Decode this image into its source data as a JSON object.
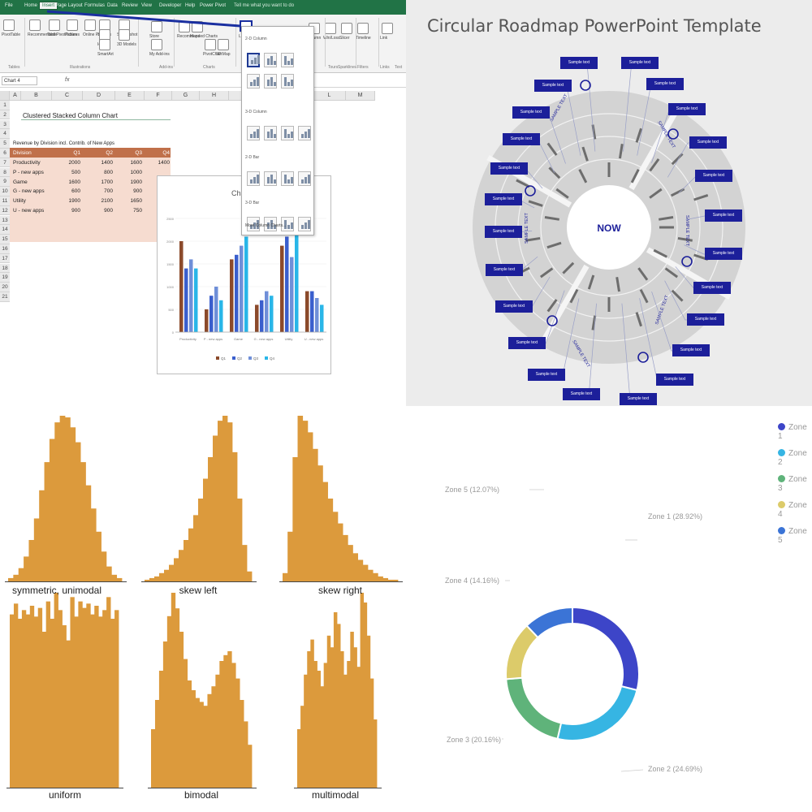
{
  "excel": {
    "tabs": [
      "File",
      "Home",
      "Insert",
      "Page Layout",
      "Formulas",
      "Data",
      "Review",
      "View",
      "Developer",
      "Help",
      "Power Pivot"
    ],
    "active_tab": "Insert",
    "tell_me": "Tell me what you want to do",
    "ribbon_groups": [
      "Tables",
      "Illustrations",
      "Add-ins",
      "Charts",
      "Tours",
      "Sparklines",
      "Filters",
      "Links",
      "Text"
    ],
    "ribbon_buttons": [
      "PivotTable",
      "Recommended PivotTables",
      "Table",
      "Pictures",
      "Online Pictures",
      "Shapes",
      "Icons",
      "SmartArt",
      "Screenshot",
      "3D Models",
      "Store",
      "My Add-ins",
      "Recommended Charts",
      "Maps",
      "PivotChart",
      "3D Map",
      "Line",
      "Column",
      "Win/Loss",
      "Slicer",
      "Timeline",
      "Link"
    ],
    "namebox": "Chart 4",
    "fx": "fx",
    "columns": [
      "A",
      "B",
      "C",
      "D",
      "E",
      "F",
      "G",
      "H",
      "I",
      "J",
      "K",
      "L",
      "M"
    ],
    "rows": [
      "1",
      "2",
      "3",
      "4",
      "5",
      "6",
      "7",
      "8",
      "9",
      "10",
      "11",
      "12",
      "13",
      "14",
      "15",
      "16",
      "17",
      "18",
      "19",
      "20",
      "21"
    ],
    "sheet_title": "Clustered Stacked Column Chart",
    "subtitle": "Revenue by Division incl. Contrib. of New Apps",
    "table_header": [
      "Division",
      "Q1",
      "Q2",
      "Q3",
      "Q4"
    ],
    "table_rows": [
      [
        "Productivity",
        "2000",
        "1400",
        "1600",
        "1400"
      ],
      [
        "P - new apps",
        "500",
        "800",
        "1000",
        ""
      ],
      [
        "Game",
        "1600",
        "1700",
        "1900",
        ""
      ],
      [
        "G - new apps",
        "600",
        "700",
        "900",
        ""
      ],
      [
        "Utility",
        "1900",
        "2100",
        "1650",
        ""
      ],
      [
        "U - new apps",
        "900",
        "900",
        "750",
        ""
      ]
    ],
    "dropdown_sections": [
      "2-D Column",
      "3-D Column",
      "2-D Bar",
      "3-D Bar"
    ],
    "dropdown_more": "More Column Charts...",
    "chart_title": "Cha",
    "chart_legend": [
      "Q1",
      "Q2",
      "Q3",
      "Q4"
    ],
    "chart_colors": [
      "#8b4a2b",
      "#3a5fcd",
      "#6f8fd8",
      "#29b6e8"
    ],
    "chart_categories": [
      "Productivity",
      "P - new apps",
      "Game",
      "G - new apps",
      "Utility",
      "U - new apps"
    ],
    "chart_yticks": [
      "2500",
      "2000",
      "1500",
      "1000",
      "500",
      "0"
    ]
  },
  "roadmap": {
    "title": "Circular Roadmap PowerPoint Template",
    "center": "NOW",
    "box_label": "Sample text",
    "segment_label": "SAMPLE TEXT",
    "box_color": "#1c1f9a"
  },
  "histograms": {
    "fill": "#dc9a3c",
    "labels": [
      "symmetric, unimodal",
      "skew left",
      "skew right",
      "uniform",
      "bimodal",
      "multimodal"
    ]
  },
  "donut": {
    "legend": [
      "Zone 1",
      "Zone 2",
      "Zone 3",
      "Zone 4",
      "Zone 5"
    ],
    "slice_labels": [
      "Zone 1 (28.92%)",
      "Zone 2 (24.69%)",
      "Zone 3 (20.16%)",
      "Zone 4 (14.16%)",
      "Zone 5 (12.07%)"
    ],
    "colors": [
      "#3d45c8",
      "#36b5e3",
      "#5fb37a",
      "#dccb6a",
      "#3b74d6"
    ]
  },
  "chart_data": [
    {
      "type": "bar",
      "title": "Cha",
      "categories": [
        "Productivity",
        "P - new apps",
        "Game",
        "G - new apps",
        "Utility",
        "U - new apps"
      ],
      "series": [
        {
          "name": "Q1",
          "values": [
            2000,
            500,
            1600,
            600,
            1900,
            900
          ]
        },
        {
          "name": "Q2",
          "values": [
            1400,
            800,
            1700,
            700,
            2100,
            900
          ]
        },
        {
          "name": "Q3",
          "values": [
            1600,
            1000,
            1900,
            900,
            1650,
            750
          ]
        },
        {
          "name": "Q4",
          "values": [
            1400,
            700,
            2100,
            800,
            2400,
            600
          ]
        }
      ],
      "ylim": [
        0,
        2500
      ]
    },
    {
      "type": "bar",
      "title": "symmetric, unimodal",
      "values": [
        2,
        4,
        8,
        15,
        25,
        38,
        55,
        72,
        86,
        96,
        100,
        99,
        93,
        84,
        72,
        58,
        44,
        30,
        18,
        9,
        4,
        2
      ]
    },
    {
      "type": "bar",
      "title": "skew left",
      "values": [
        1,
        2,
        3,
        5,
        7,
        10,
        14,
        19,
        25,
        32,
        40,
        50,
        62,
        75,
        88,
        97,
        100,
        96,
        78,
        50,
        22,
        6
      ]
    },
    {
      "type": "bar",
      "title": "skew right",
      "values": [
        5,
        30,
        75,
        100,
        97,
        90,
        80,
        70,
        60,
        50,
        42,
        35,
        28,
        22,
        17,
        13,
        10,
        7,
        5,
        3,
        2,
        1,
        1
      ]
    },
    {
      "type": "bar",
      "title": "uniform",
      "values": [
        80,
        85,
        78,
        82,
        80,
        84,
        79,
        83,
        72,
        86,
        78,
        90,
        82,
        75,
        68,
        88,
        79,
        86,
        83,
        85,
        80,
        84,
        79,
        82,
        88,
        78,
        82
      ]
    },
    {
      "type": "bar",
      "title": "bimodal",
      "values": [
        30,
        45,
        60,
        75,
        88,
        100,
        92,
        80,
        66,
        55,
        50,
        46,
        44,
        42,
        48,
        52,
        58,
        65,
        68,
        70,
        64,
        56,
        45,
        34,
        22
      ]
    },
    {
      "type": "bar",
      "title": "multimodal",
      "values": [
        30,
        42,
        58,
        70,
        76,
        65,
        60,
        52,
        64,
        78,
        72,
        90,
        84,
        70,
        58,
        65,
        80,
        72,
        62,
        100,
        95,
        78,
        56,
        35
      ]
    },
    {
      "type": "pie",
      "categories": [
        "Zone 1",
        "Zone 2",
        "Zone 3",
        "Zone 4",
        "Zone 5"
      ],
      "values": [
        28.92,
        24.69,
        20.16,
        14.16,
        12.07
      ]
    }
  ]
}
